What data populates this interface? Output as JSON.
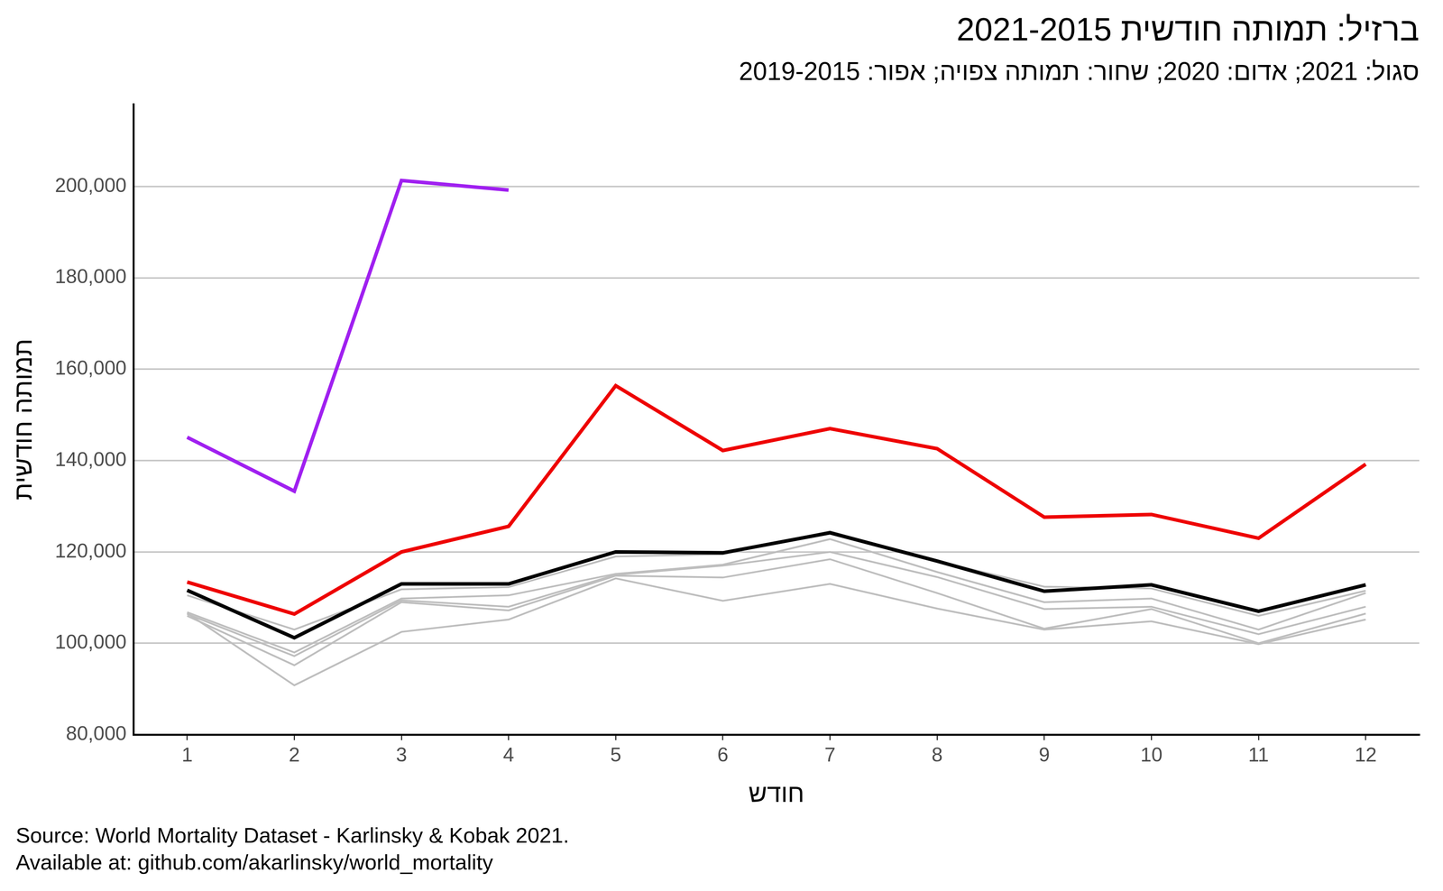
{
  "chart_data": {
    "type": "line",
    "title": "ברזיל: תמותה חודשית 2021-2015",
    "subtitle": "סגול: 2021; אדום: 2020; שחור: תמותה צפויה; אפור: 2019-2015",
    "x_label": "חודש",
    "y_label": "תמותה חודשית",
    "caption": [
      "Source: World Mortality Dataset - Karlinsky & Kobak 2021.",
      "Available at: github.com/akarlinsky/world_mortality"
    ],
    "categories": [
      "1",
      "2",
      "3",
      "4",
      "5",
      "6",
      "7",
      "8",
      "9",
      "10",
      "11",
      "12"
    ],
    "series": [
      {
        "color": "#bebebe",
        "values": [
          110500,
          103000,
          111800,
          112300,
          119000,
          119500,
          124500,
          118000,
          112400,
          112000,
          106000,
          111500
        ]
      },
      {
        "color": "#bebebe",
        "values": [
          106800,
          98000,
          109800,
          110500,
          115200,
          117200,
          122800,
          115600,
          109000,
          109800,
          103000,
          111000
        ]
      },
      {
        "color": "#bebebe",
        "values": [
          106400,
          97200,
          109400,
          108000,
          115000,
          117000,
          120000,
          114500,
          107500,
          108000,
          102000,
          108000
        ]
      },
      {
        "color": "#bebebe",
        "values": [
          106000,
          95200,
          109000,
          107200,
          114800,
          114400,
          118400,
          111000,
          103200,
          107500,
          100000,
          106500
        ]
      },
      {
        "color": "#bebebe",
        "values": [
          106600,
          90800,
          102500,
          105200,
          114200,
          109300,
          113000,
          107600,
          103000,
          104800,
          99800,
          105200
        ]
      },
      {
        "color": "#000000",
        "values": [
          111600,
          101200,
          113000,
          113000,
          120000,
          119800,
          124200,
          118000,
          111400,
          112800,
          107000,
          112800
        ]
      },
      {
        "color": "#ee0000",
        "values": [
          113400,
          106400,
          120000,
          125600,
          156400,
          142200,
          147000,
          142600,
          127600,
          128200,
          123000,
          139200
        ]
      },
      {
        "color": "#a020f0",
        "values": [
          145100,
          133300,
          201300,
          199200,
          null,
          null,
          null,
          null,
          null,
          null,
          null,
          null
        ]
      }
    ],
    "ylim": [
      80000,
      218000
    ],
    "yticks": [
      {
        "value": 80000,
        "label": "80,000"
      },
      {
        "value": 100000,
        "label": "100,000"
      },
      {
        "value": 120000,
        "label": "120,000"
      },
      {
        "value": 140000,
        "label": "140,000"
      },
      {
        "value": 160000,
        "label": "160,000"
      },
      {
        "value": 180000,
        "label": "180,000"
      },
      {
        "value": 200000,
        "label": "200,000"
      }
    ],
    "grid": true
  }
}
